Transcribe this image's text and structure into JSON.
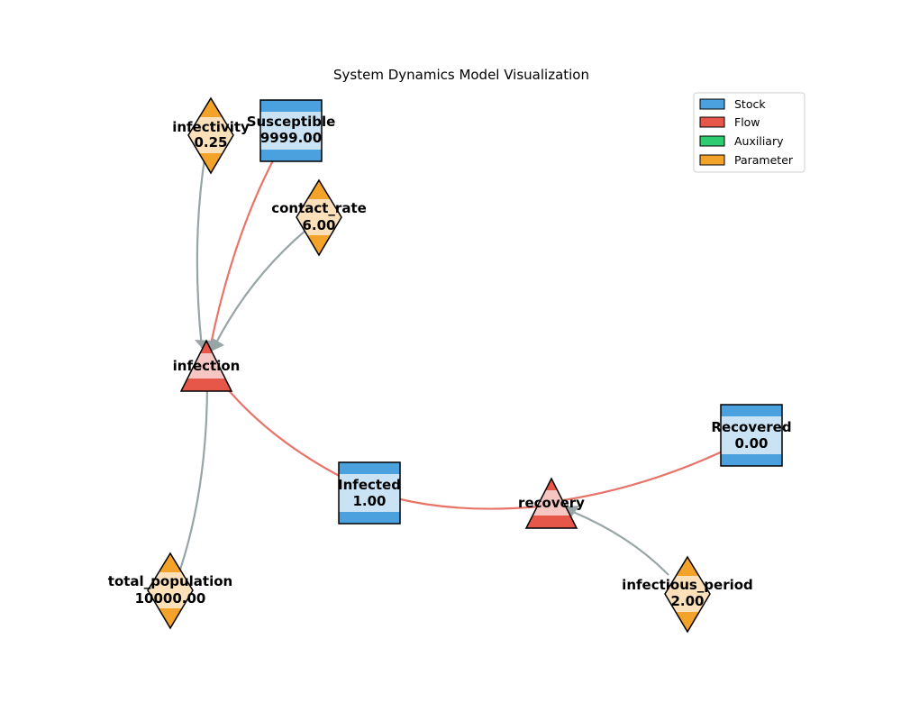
{
  "title": "System Dynamics Model Visualization",
  "colors": {
    "stock": "#4aa1dd",
    "stock_band": "#c9e2f4",
    "flow": "#e6574a",
    "flow_band": "#f6c6c3",
    "auxiliary": "#2ecc71",
    "parameter": "#f4a32a",
    "parameter_band": "#fbe0b9",
    "flow_edge": "#e87368",
    "influence_edge": "#97a5a6"
  },
  "legend": {
    "stock": "Stock",
    "flow": "Flow",
    "auxiliary": "Auxiliary",
    "parameter": "Parameter"
  },
  "nodes": {
    "susceptible": {
      "name": "Susceptible",
      "value": "9999.00",
      "kind": "stock"
    },
    "infected": {
      "name": "Infected",
      "value": "1.00",
      "kind": "stock"
    },
    "recovered": {
      "name": "Recovered",
      "value": "0.00",
      "kind": "stock"
    },
    "infection": {
      "name": "infection",
      "kind": "flow"
    },
    "recovery": {
      "name": "recovery",
      "kind": "flow"
    },
    "infectivity": {
      "name": "infectivity",
      "value": "0.25",
      "kind": "parameter"
    },
    "contact_rate": {
      "name": "contact_rate",
      "value": "6.00",
      "kind": "parameter"
    },
    "total_population": {
      "name": "total_population",
      "value": "10000.00",
      "kind": "parameter"
    },
    "infectious_period": {
      "name": "infectious_period",
      "value": "2.00",
      "kind": "parameter"
    }
  },
  "edges": [
    {
      "from": "Susceptible",
      "to": "infection",
      "type": "flow"
    },
    {
      "from": "infection",
      "to": "Infected",
      "type": "flow"
    },
    {
      "from": "Infected",
      "to": "recovery",
      "type": "flow"
    },
    {
      "from": "recovery",
      "to": "Recovered",
      "type": "flow"
    },
    {
      "from": "infectivity",
      "to": "infection",
      "type": "influence"
    },
    {
      "from": "contact_rate",
      "to": "infection",
      "type": "influence"
    },
    {
      "from": "total_population",
      "to": "infection",
      "type": "influence"
    },
    {
      "from": "infectious_period",
      "to": "recovery",
      "type": "influence"
    }
  ]
}
